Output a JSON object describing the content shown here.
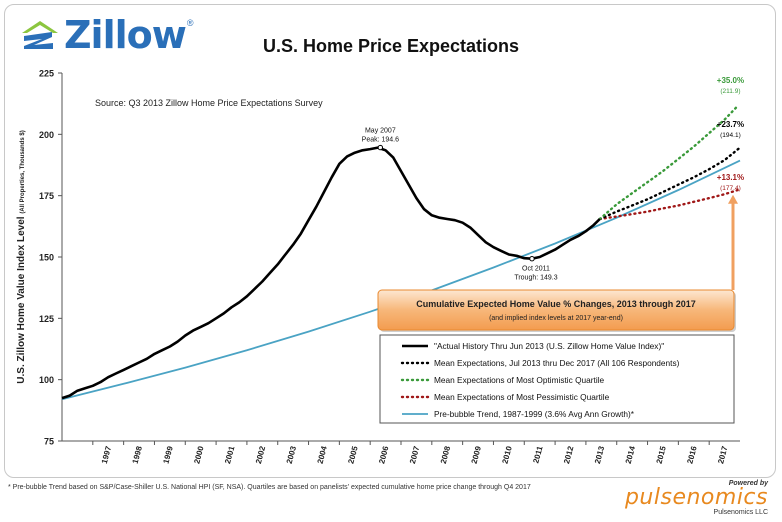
{
  "header": {
    "logo_text": "Zillow",
    "logo_mark": "®",
    "logo_icon": "zillow-z-icon",
    "title": "U.S. Home Price Expectations"
  },
  "footer": {
    "note": "* Pre-bubble Trend based on S&P/Case-Shiller U.S. National HPI (SF, NSA).  Quartiles are based on panelists' expected cumulative home price change through Q4 2017",
    "powered_by": "Powered by",
    "brand": "pulsenomics",
    "brand_llc": "Pulsenomics LLC"
  },
  "colors": {
    "actual": "#000000",
    "mean": "#000000",
    "optimistic": "#3a9a3a",
    "pessimistic": "#a01818",
    "trend": "#4aa3c4",
    "callout_bg": "#f7b77a"
  },
  "chart_data": {
    "type": "line",
    "title": "U.S. Home Price Expectations",
    "source": "Source: Q3 2013 Zillow Home Price Expectations Survey",
    "ylabel": "U.S. Zillow Home Value Index Level",
    "ylabel_note": "(All Properties, Thousands $)",
    "ylim": [
      75,
      225
    ],
    "yticks": [
      "75",
      "100",
      "125",
      "150",
      "175",
      "200",
      "225"
    ],
    "xlim": [
      1996,
      2018
    ],
    "xticks": [
      "1997",
      "1998",
      "1999",
      "2000",
      "2001",
      "2002",
      "2003",
      "2004",
      "2005",
      "2006",
      "2007",
      "2008",
      "2009",
      "2010",
      "2011",
      "2012",
      "2013",
      "2014",
      "2015",
      "2016",
      "2017"
    ],
    "series": [
      {
        "name": "\"Actual History Thru Jun 2013  (U.S. Zillow Home Value Index)\"",
        "key": "actual",
        "x": [
          1996.0,
          1996.25,
          1996.5,
          1996.75,
          1997.0,
          1997.25,
          1997.5,
          1997.75,
          1998.0,
          1998.25,
          1998.5,
          1998.75,
          1999.0,
          1999.25,
          1999.5,
          1999.75,
          2000.0,
          2000.25,
          2000.5,
          2000.75,
          2001.0,
          2001.25,
          2001.5,
          2001.75,
          2002.0,
          2002.25,
          2002.5,
          2002.75,
          2003.0,
          2003.25,
          2003.5,
          2003.75,
          2004.0,
          2004.25,
          2004.5,
          2004.75,
          2005.0,
          2005.25,
          2005.5,
          2005.75,
          2006.0,
          2006.25,
          2006.5,
          2006.75,
          2007.0,
          2007.25,
          2007.5,
          2007.75,
          2008.0,
          2008.25,
          2008.5,
          2008.75,
          2009.0,
          2009.25,
          2009.5,
          2009.75,
          2010.0,
          2010.25,
          2010.5,
          2010.75,
          2011.0,
          2011.25,
          2011.5,
          2011.75,
          2012.0,
          2012.25,
          2012.5,
          2012.75,
          2013.0,
          2013.25,
          2013.45
        ],
        "y": [
          92.5,
          93.5,
          95.5,
          96.5,
          97.5,
          99.0,
          101.0,
          102.5,
          104.0,
          105.5,
          107.0,
          108.5,
          110.5,
          112.0,
          113.5,
          115.5,
          118.0,
          120.0,
          121.5,
          123.0,
          125.0,
          127.0,
          129.5,
          131.5,
          134.0,
          137.0,
          140.0,
          143.5,
          147.0,
          151.0,
          155.0,
          159.5,
          165.0,
          170.5,
          176.5,
          182.5,
          188.0,
          191.0,
          192.5,
          193.5,
          194.0,
          194.6,
          193.5,
          190.5,
          185.0,
          179.5,
          174.0,
          169.5,
          167.0,
          166.0,
          165.5,
          165.0,
          164.0,
          162.0,
          159.0,
          156.0,
          154.0,
          152.5,
          151.0,
          150.5,
          149.5,
          149.3,
          150.0,
          151.5,
          153.0,
          155.0,
          157.0,
          158.5,
          160.5,
          163.0,
          165.5
        ]
      },
      {
        "name": "Mean Expectations, Jul 2013 thru Dec 2017  (All 106 Respondents)",
        "key": "mean",
        "x": [
          2013.45,
          2014.0,
          2014.5,
          2015.0,
          2015.5,
          2016.0,
          2016.5,
          2017.0,
          2017.5,
          2017.95
        ],
        "y": [
          165.5,
          168.5,
          171.0,
          173.5,
          176.5,
          179.5,
          182.5,
          185.8,
          189.5,
          194.1
        ]
      },
      {
        "name": "Mean Expectations of Most Optimistic Quartile",
        "key": "optimistic",
        "x": [
          2013.45,
          2014.0,
          2014.5,
          2015.0,
          2015.5,
          2016.0,
          2016.5,
          2017.0,
          2017.5,
          2017.95
        ],
        "y": [
          165.5,
          171.5,
          176.0,
          180.5,
          185.0,
          190.0,
          195.0,
          200.5,
          206.0,
          211.9
        ]
      },
      {
        "name": "Mean Expectations of Most Pessimistic Quartile",
        "key": "pessimistic",
        "x": [
          2013.45,
          2014.0,
          2014.5,
          2015.0,
          2015.5,
          2016.0,
          2016.5,
          2017.0,
          2017.5,
          2017.95
        ],
        "y": [
          165.5,
          166.5,
          167.5,
          168.5,
          169.8,
          171.0,
          172.5,
          174.0,
          175.6,
          177.4
        ]
      },
      {
        "name": "Pre-bubble Trend, 1987-1999 (3.6% Avg Ann Growth)*",
        "key": "trend",
        "x": [
          1996.0,
          1998.0,
          2000.0,
          2002.0,
          2004.0,
          2006.0,
          2008.0,
          2010.0,
          2012.0,
          2014.0,
          2016.0,
          2018.0
        ],
        "y": [
          92.0,
          98.3,
          104.9,
          112.0,
          119.6,
          127.7,
          136.4,
          145.7,
          155.5,
          166.0,
          177.3,
          189.3
        ]
      }
    ],
    "annotations": {
      "peak": {
        "line1": "May 2007",
        "line2": "Peak: 194.6",
        "x": 2006.33,
        "y": 194.6
      },
      "trough": {
        "line1": "Oct 2011",
        "line2": "Trough: 149.3",
        "x": 2011.25,
        "y": 149.3
      },
      "end_labels": [
        {
          "key": "optimistic",
          "pct": "+35.0%",
          "value": "(211.9)"
        },
        {
          "key": "mean",
          "pct": "+23.7%",
          "value": "(194.1)"
        },
        {
          "key": "pessimistic",
          "pct": "+13.1%",
          "value": "(177.4)"
        }
      ],
      "callout_title": "Cumulative Expected Home Value % Changes, 2013 through 2017",
      "callout_sub": "(and implied  index levels at 2017 year-end)"
    },
    "legend_position": "bottom-right",
    "grid": false
  }
}
